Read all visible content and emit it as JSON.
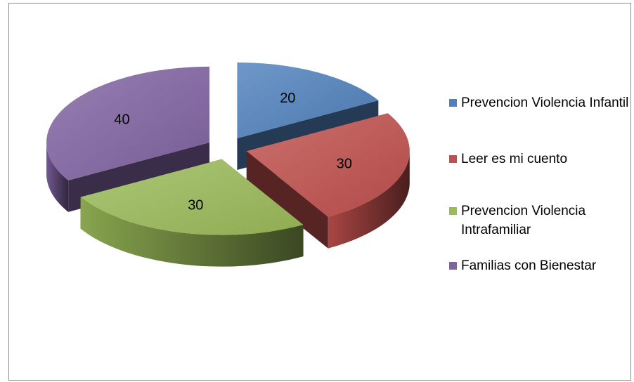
{
  "chart_data": {
    "type": "pie",
    "style": "3d-exploded",
    "slices": [
      {
        "name": "Prevencion Violencia Infantil",
        "value": 20,
        "label": "20",
        "color": "#4F81BD"
      },
      {
        "name": "Leer es mi cuento",
        "value": 30,
        "label": "30",
        "color": "#C0504D"
      },
      {
        "name": "Prevencion Violencia Intrafamiliar",
        "value": 30,
        "label": "30",
        "color": "#9BBB59"
      },
      {
        "name": "Familias con Bienestar",
        "value": 40,
        "label": "40",
        "color": "#8064A2"
      }
    ],
    "legend_position": "right"
  }
}
